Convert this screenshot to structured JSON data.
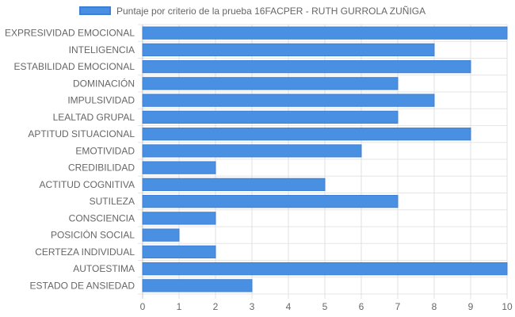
{
  "legend": {
    "label": "Puntaje por criterio de la prueba 16FACPER - RUTH GURROLA ZUÑIGA",
    "color": "#4a90e2"
  },
  "chart_data": {
    "type": "bar",
    "orientation": "horizontal",
    "categories": [
      "EXPRESIVIDAD EMOCIONAL",
      "INTELIGENCIA",
      "ESTABILIDAD EMOCIONAL",
      "DOMINACIÓN",
      "IMPULSIVIDAD",
      "LEALTAD GRUPAL",
      "APTITUD SITUACIONAL",
      "EMOTIVIDAD",
      "CREDIBILIDAD",
      "ACTITUD COGNITIVA",
      "SUTILEZA",
      "CONSCIENCIA",
      "POSICIÓN SOCIAL",
      "CERTEZA INDIVIDUAL",
      "AUTOESTIMA",
      "ESTADO DE ANSIEDAD"
    ],
    "series": [
      {
        "name": "Puntaje por criterio de la prueba 16FACPER - RUTH GURROLA ZUÑIGA",
        "values": [
          10,
          8,
          9,
          7,
          8,
          7,
          9,
          6,
          2,
          5,
          7,
          2,
          1,
          2,
          10,
          3
        ]
      }
    ],
    "xlim": [
      0,
      10
    ],
    "xticks": [
      0,
      1,
      2,
      3,
      4,
      5,
      6,
      7,
      8,
      9,
      10
    ],
    "grid": true,
    "legend_position": "top-center",
    "bar_color": "#4a90e2",
    "bar_border_color": "#3d7fd6"
  }
}
